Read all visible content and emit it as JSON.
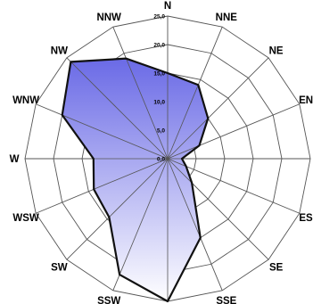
{
  "chart_data": {
    "type": "radar",
    "title": "",
    "directions": [
      "N",
      "NNE",
      "NE",
      "ENE",
      "E",
      "ESE",
      "SE",
      "SSE",
      "S",
      "SSW",
      "SW",
      "WSW",
      "W",
      "WNW",
      "NW",
      "NNW"
    ],
    "direction_labels": [
      "N",
      "NNE",
      "NE",
      "ENE",
      "E",
      "ESE",
      "SE",
      "SSE",
      "S",
      "SSW",
      "SW",
      "WSW",
      "W",
      "WNW",
      "NW",
      "NNW"
    ],
    "values": [
      15,
      14,
      10,
      6,
      2.5,
      3.5,
      6,
      15,
      25,
      22,
      14.5,
      14,
      13,
      20,
      24,
      19
    ],
    "radial_ticks": [
      0,
      5,
      10,
      15,
      20,
      25
    ],
    "radial_tick_labels": [
      "0,0",
      "5,0",
      "10,0",
      "15,0",
      "20,0",
      "25,0"
    ],
    "rlim": [
      0,
      25
    ],
    "grid": true,
    "legend": "none",
    "fill_gradient": [
      "#ffffff",
      "#6a6ae6"
    ],
    "line_color": "#111111",
    "grid_color": "#555555"
  }
}
